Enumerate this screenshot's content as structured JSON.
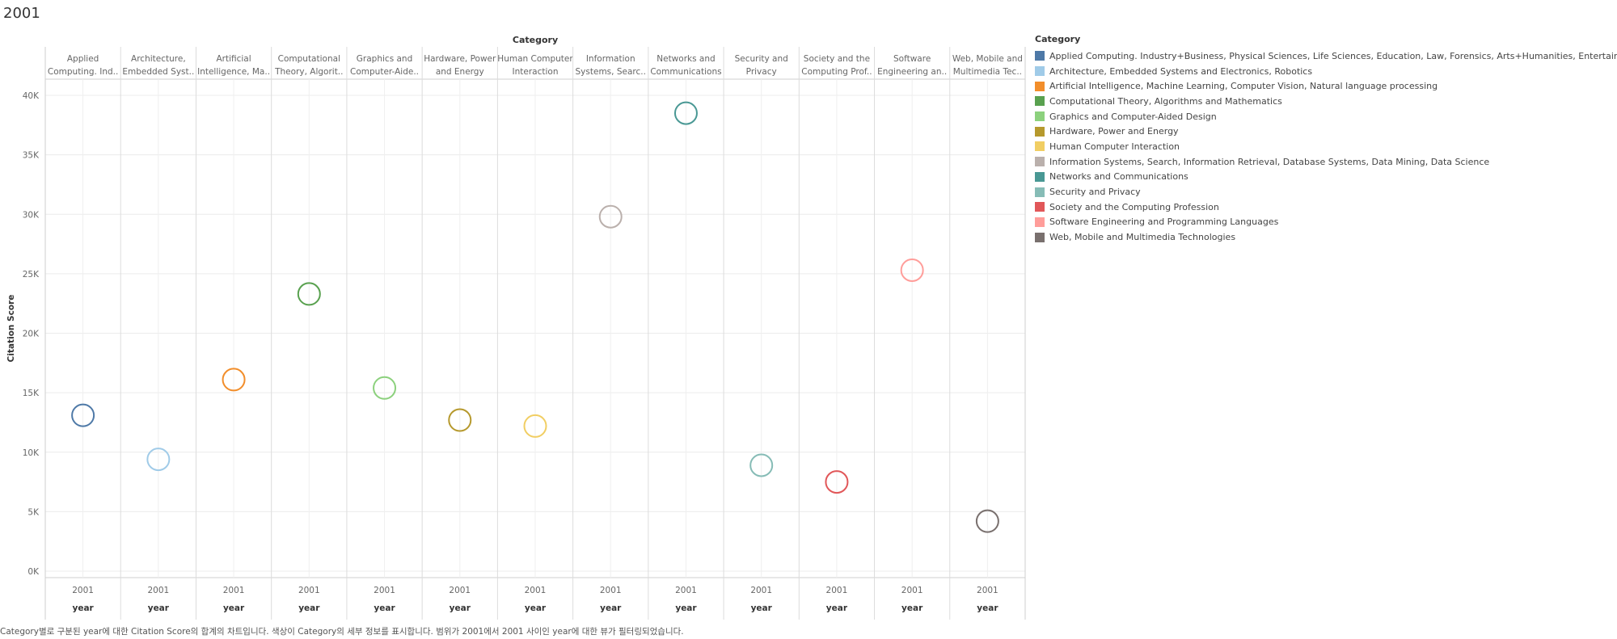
{
  "title": "2001",
  "caption": "Category별로 구분된 year에 대한 Citation Score의 합계의 차트입니다. 색상이 Category의 세부 정보를 표시합니다. 범위가 2001에서 2001 사이인 year에 대한 뷰가 필터링되었습니다.",
  "legend": {
    "title": "Category"
  },
  "chart_data": {
    "type": "scatter",
    "column_header_title": "Category",
    "ylabel": "Citation Score",
    "xlabel": "year",
    "ylim": [
      0,
      41000
    ],
    "yticks": [
      0,
      5000,
      10000,
      15000,
      20000,
      25000,
      30000,
      35000,
      40000
    ],
    "ytick_labels": [
      "0K",
      "5K",
      "10K",
      "15K",
      "20K",
      "25K",
      "30K",
      "35K",
      "40K"
    ],
    "x_label": "2001",
    "grid": true,
    "legend_placement": "right",
    "categories": [
      {
        "name": "Applied Computing. Industry+Business, Physical Sciences, Life Sciences, Education, Law, Forensics, Arts+Humanities, Entertainment",
        "header": [
          "Applied",
          "Computing. Ind.."
        ],
        "color": "#4e79a7",
        "value": 13100
      },
      {
        "name": "Architecture, Embedded Systems and Electronics, Robotics",
        "header": [
          "Architecture,",
          "Embedded Syst.."
        ],
        "color": "#a0cbe8",
        "value": 9400
      },
      {
        "name": "Artificial Intelligence, Machine Learning, Computer Vision, Natural language processing",
        "header": [
          "Artificial",
          "Intelligence, Ma.."
        ],
        "color": "#f28e2b",
        "value": 16100
      },
      {
        "name": "Computational Theory, Algorithms and Mathematics",
        "header": [
          "Computational",
          "Theory, Algorit.."
        ],
        "color": "#59a14f",
        "value": 23300
      },
      {
        "name": "Graphics and Computer-Aided Design",
        "header": [
          "Graphics and",
          "Computer-Aide.."
        ],
        "color": "#8cd17d",
        "value": 15400
      },
      {
        "name": "Hardware, Power and Energy",
        "header": [
          "Hardware, Power",
          "and Energy"
        ],
        "color": "#b6992d",
        "value": 12700
      },
      {
        "name": "Human Computer Interaction",
        "header": [
          "Human Computer",
          "Interaction"
        ],
        "color": "#f1ce63",
        "value": 12200
      },
      {
        "name": "Information Systems, Search, Information Retrieval, Database Systems, Data Mining, Data Science",
        "header": [
          "Information",
          "Systems, Searc.."
        ],
        "color": "#bab0ac",
        "value": 29800
      },
      {
        "name": "Networks and Communications",
        "header": [
          "Networks and",
          "Communications"
        ],
        "color": "#499894",
        "value": 38500
      },
      {
        "name": "Security and Privacy",
        "header": [
          "Security and",
          "Privacy"
        ],
        "color": "#86bcb6",
        "value": 8900
      },
      {
        "name": "Society and the Computing Profession",
        "header": [
          "Society and the",
          "Computing Prof.."
        ],
        "color": "#e15759",
        "value": 7500
      },
      {
        "name": "Software Engineering and Programming Languages",
        "header": [
          "Software",
          "Engineering an.."
        ],
        "color": "#ff9d9a",
        "value": 25300
      },
      {
        "name": "Web, Mobile and Multimedia Technologies",
        "header": [
          "Web, Mobile and",
          "Multimedia Tec.."
        ],
        "color": "#79706e",
        "value": 4200
      }
    ]
  }
}
